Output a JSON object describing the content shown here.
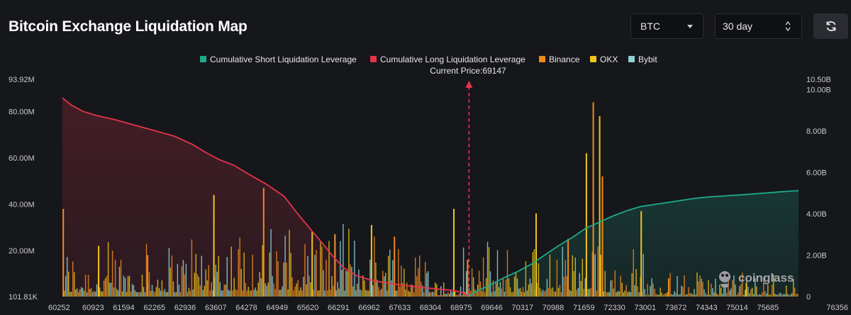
{
  "header": {
    "title": "Bitcoin Exchange Liquidation Map",
    "coin_value": "BTC",
    "period_value": "30 day"
  },
  "colors": {
    "short": "#1fa98a",
    "long": "#e5334b",
    "binance": "#f08a1c",
    "okx": "#f0c419",
    "bybit": "#8fd3d8",
    "current_price_marker": "#e5334b"
  },
  "watermark": "coinglass",
  "chart_data": {
    "type": "bar",
    "title": "",
    "current_price_label": "Current Price:69147",
    "current_price": 69147,
    "legend": [
      {
        "name": "Cumulative Short Liquidation Leverage",
        "color": "#1fa98a",
        "shape": "line"
      },
      {
        "name": "Cumulative Long Liquidation Leverage",
        "color": "#e5334b",
        "shape": "line"
      },
      {
        "name": "Binance",
        "color": "#f08a1c",
        "shape": "bar"
      },
      {
        "name": "OKX",
        "color": "#f0c419",
        "shape": "bar"
      },
      {
        "name": "Bybit",
        "color": "#8fd3d8",
        "shape": "bar"
      }
    ],
    "x_ticks": [
      "60252",
      "60923",
      "61594",
      "62265",
      "62936",
      "63607",
      "64278",
      "64949",
      "65620",
      "66291",
      "66962",
      "67633",
      "68304",
      "68975",
      "69646",
      "70317",
      "70988",
      "71659",
      "72330",
      "73001",
      "73672",
      "74343",
      "75014",
      "75685",
      "76356"
    ],
    "x_range": [
      60252,
      76356
    ],
    "left_axis": {
      "ticks": [
        "101.81K",
        "20.00M",
        "40.00M",
        "60.00M",
        "80.00M",
        "93.92M"
      ],
      "values": [
        0.10181,
        20,
        40,
        60,
        80,
        93.92
      ],
      "unit": "M",
      "range": [
        0.10181,
        93.92
      ]
    },
    "right_axis": {
      "ticks": [
        "0",
        "2.00B",
        "4.00B",
        "6.00B",
        "8.00B",
        "10.00B",
        "10.50B"
      ],
      "values": [
        0,
        2,
        4,
        6,
        8,
        10,
        10.5
      ],
      "unit": "B",
      "range": [
        0,
        10.5
      ]
    },
    "cumulative_long": {
      "name": "Cumulative Long Liquidation Leverage",
      "x": [
        60252,
        60450,
        60700,
        61000,
        61400,
        61800,
        62300,
        62700,
        63100,
        63400,
        63700,
        64000,
        64300,
        64700,
        65100,
        65400,
        65700,
        65950,
        66150,
        66400,
        66700,
        67000,
        67300,
        67600,
        67900,
        68200,
        68500,
        68800,
        69000,
        69147
      ],
      "y_billions": [
        9.6,
        9.25,
        8.95,
        8.75,
        8.55,
        8.3,
        8.0,
        7.75,
        7.35,
        6.95,
        6.6,
        6.35,
        5.95,
        5.45,
        4.85,
        4.0,
        3.2,
        2.55,
        2.0,
        1.4,
        1.0,
        0.8,
        0.68,
        0.58,
        0.5,
        0.42,
        0.36,
        0.3,
        0.2,
        0.0
      ]
    },
    "cumulative_short": {
      "name": "Cumulative Short Liquidation Leverage",
      "x": [
        69147,
        69300,
        69600,
        69900,
        70200,
        70500,
        70800,
        71100,
        71400,
        71700,
        72000,
        72300,
        72600,
        72900,
        73200,
        73500,
        73800,
        74100,
        74400,
        74700,
        75000,
        75300,
        75600,
        75900,
        76200,
        76356
      ],
      "y_billions": [
        0.0,
        0.25,
        0.55,
        0.9,
        1.2,
        1.55,
        2.0,
        2.45,
        2.85,
        3.3,
        3.6,
        3.9,
        4.15,
        4.35,
        4.45,
        4.55,
        4.65,
        4.75,
        4.82,
        4.86,
        4.9,
        4.95,
        5.0,
        5.05,
        5.1,
        5.12
      ]
    },
    "bar_series": [
      {
        "name": "Binance",
        "color": "#f08a1c"
      },
      {
        "name": "OKX",
        "color": "#f0c419"
      },
      {
        "name": "Bybit",
        "color": "#8fd3d8"
      }
    ],
    "notable_bars_millions": [
      {
        "price": 60255,
        "value": 38.0
      },
      {
        "price": 61030,
        "value": 22.0
      },
      {
        "price": 62100,
        "value": 18.0
      },
      {
        "price": 63550,
        "value": 44.0
      },
      {
        "price": 64640,
        "value": 47.0
      },
      {
        "price": 65700,
        "value": 28.0
      },
      {
        "price": 66200,
        "value": 27.0
      },
      {
        "price": 67000,
        "value": 31.0
      },
      {
        "price": 67500,
        "value": 26.0
      },
      {
        "price": 68800,
        "value": 38.0
      },
      {
        "price": 69100,
        "value": 16.0
      },
      {
        "price": 70600,
        "value": 36.0
      },
      {
        "price": 71300,
        "value": 25.0
      },
      {
        "price": 71700,
        "value": 62.0
      },
      {
        "price": 71850,
        "value": 84.0
      },
      {
        "price": 71990,
        "value": 78.0
      },
      {
        "price": 72050,
        "value": 52.0
      },
      {
        "price": 72900,
        "value": 37.0
      },
      {
        "price": 73500,
        "value": 8.0
      },
      {
        "price": 75200,
        "value": 6.0
      }
    ],
    "grid": false,
    "legend_position": "top-center"
  }
}
